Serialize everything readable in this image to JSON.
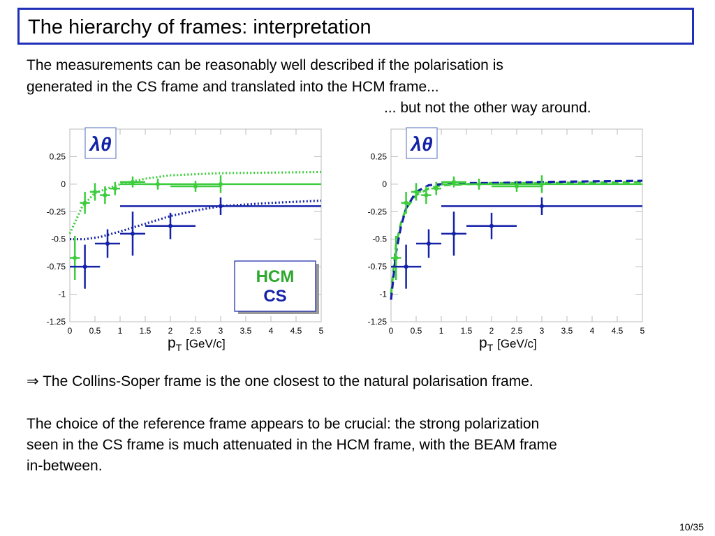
{
  "slide": {
    "title": "The hierarchy of  frames: interpretation",
    "intro_line1": "The measurements can be reasonably well described if the polarisation is",
    "intro_line2": "generated in the CS frame and translated into the HCM frame...",
    "intro_line3": "... but not the other way around.",
    "conclusion_arrow": "⇒",
    "conclusion": " The Collins-Soper frame is the one closest to the natural polarisation frame.",
    "choice_line1": "The choice of the reference frame appears to be crucial: the strong polarization",
    "choice_line2": "seen in the CS frame is much attenuated in the HCM frame, with the BEAM frame",
    "choice_line3": "in-between.",
    "page_number": "10/35"
  },
  "chart_data": [
    {
      "type": "scatter",
      "ylabel": "λθ",
      "xlabel_main": "p",
      "xlabel_sub": "T",
      "xlabel_unit": "[GeV/c]",
      "xlim": [
        0,
        5
      ],
      "ylim": [
        -1.25,
        0.5
      ],
      "x_ticks": [
        "0",
        "0.5",
        "1",
        "1.5",
        "2",
        "2.5",
        "3",
        "3.5",
        "4",
        "4.5",
        "5"
      ],
      "y_ticks": [
        "0.25",
        "0",
        "-0.25",
        "-0.5",
        "-0.75",
        "-1",
        "-1.25"
      ],
      "legend": [
        {
          "label": "HCM",
          "color": "#2ea82e"
        },
        {
          "label": "CS",
          "color": "#1422a8"
        }
      ],
      "series": [
        {
          "name": "HCM",
          "color": "#3dcc3d",
          "points": [
            {
              "x": 0.1,
              "y": -0.67,
              "xerr": 0.1,
              "yerr": 0.2
            },
            {
              "x": 0.3,
              "y": -0.17,
              "xerr": 0.1,
              "yerr": 0.1
            },
            {
              "x": 0.5,
              "y": -0.07,
              "xerr": 0.1,
              "yerr": 0.08
            },
            {
              "x": 0.7,
              "y": -0.1,
              "xerr": 0.1,
              "yerr": 0.08
            },
            {
              "x": 0.9,
              "y": -0.04,
              "xerr": 0.1,
              "yerr": 0.06
            },
            {
              "x": 1.25,
              "y": 0.02,
              "xerr": 0.25,
              "yerr": 0.05
            },
            {
              "x": 1.75,
              "y": 0.0,
              "xerr": 0.25,
              "yerr": 0.05
            },
            {
              "x": 2.5,
              "y": -0.02,
              "xerr": 0.5,
              "yerr": 0.05
            },
            {
              "x": 3.0,
              "y": 0.0,
              "xerr": 2.0,
              "yerr": 0.08
            }
          ]
        },
        {
          "name": "CS",
          "color": "#1422a8",
          "points": [
            {
              "x": 0.3,
              "y": -0.75,
              "xerr": 0.3,
              "yerr": 0.2
            },
            {
              "x": 0.75,
              "y": -0.54,
              "xerr": 0.25,
              "yerr": 0.13
            },
            {
              "x": 1.25,
              "y": -0.45,
              "xerr": 0.25,
              "yerr": 0.2
            },
            {
              "x": 2.0,
              "y": -0.38,
              "xerr": 0.5,
              "yerr": 0.12
            },
            {
              "x": 3.0,
              "y": -0.2,
              "xerr": 2.0,
              "yerr": 0.08
            }
          ]
        }
      ],
      "curves": [
        {
          "color": "#3dcc3d",
          "style": "dotted",
          "points": [
            [
              0,
              -0.45
            ],
            [
              0.25,
              -0.2
            ],
            [
              0.5,
              -0.08
            ],
            [
              1,
              0.0
            ],
            [
              1.5,
              0.05
            ],
            [
              2,
              0.08
            ],
            [
              3,
              0.1
            ],
            [
              5,
              0.11
            ]
          ]
        },
        {
          "color": "#1422a8",
          "style": "dotted",
          "points": [
            [
              0,
              -0.5
            ],
            [
              0.3,
              -0.5
            ],
            [
              0.6,
              -0.48
            ],
            [
              1,
              -0.43
            ],
            [
              1.5,
              -0.36
            ],
            [
              2,
              -0.29
            ],
            [
              2.5,
              -0.24
            ],
            [
              3,
              -0.2
            ],
            [
              4,
              -0.17
            ],
            [
              5,
              -0.15
            ]
          ]
        }
      ]
    },
    {
      "type": "scatter",
      "ylabel": "λθ",
      "xlabel_main": "p",
      "xlabel_sub": "T",
      "xlabel_unit": "[GeV/c]",
      "xlim": [
        0,
        5
      ],
      "ylim": [
        -1.25,
        0.5
      ],
      "x_ticks": [
        "0",
        "0.5",
        "1",
        "1.5",
        "2",
        "2.5",
        "3",
        "3.5",
        "4",
        "4.5",
        "5"
      ],
      "y_ticks": [
        "0.25",
        "0",
        "-0.25",
        "-0.5",
        "-0.75",
        "-1",
        "-1.25"
      ],
      "series": [
        {
          "name": "HCM",
          "color": "#3dcc3d",
          "points": [
            {
              "x": 0.1,
              "y": -0.67,
              "xerr": 0.1,
              "yerr": 0.2
            },
            {
              "x": 0.3,
              "y": -0.17,
              "xerr": 0.1,
              "yerr": 0.1
            },
            {
              "x": 0.5,
              "y": -0.07,
              "xerr": 0.1,
              "yerr": 0.08
            },
            {
              "x": 0.7,
              "y": -0.1,
              "xerr": 0.1,
              "yerr": 0.08
            },
            {
              "x": 0.9,
              "y": -0.04,
              "xerr": 0.1,
              "yerr": 0.06
            },
            {
              "x": 1.25,
              "y": 0.02,
              "xerr": 0.25,
              "yerr": 0.05
            },
            {
              "x": 1.75,
              "y": 0.0,
              "xerr": 0.25,
              "yerr": 0.05
            },
            {
              "x": 2.5,
              "y": -0.02,
              "xerr": 0.5,
              "yerr": 0.05
            },
            {
              "x": 3.0,
              "y": 0.0,
              "xerr": 2.0,
              "yerr": 0.08
            }
          ]
        },
        {
          "name": "CS",
          "color": "#1422a8",
          "points": [
            {
              "x": 0.3,
              "y": -0.75,
              "xerr": 0.3,
              "yerr": 0.2
            },
            {
              "x": 0.75,
              "y": -0.54,
              "xerr": 0.25,
              "yerr": 0.13
            },
            {
              "x": 1.25,
              "y": -0.45,
              "xerr": 0.25,
              "yerr": 0.2
            },
            {
              "x": 2.0,
              "y": -0.38,
              "xerr": 0.5,
              "yerr": 0.12
            },
            {
              "x": 3.0,
              "y": -0.2,
              "xerr": 2.0,
              "yerr": 0.08
            }
          ]
        }
      ],
      "curves": [
        {
          "color": "#3dcc3d",
          "style": "dashed",
          "points": [
            [
              0,
              -1.0
            ],
            [
              0.1,
              -0.55
            ],
            [
              0.2,
              -0.35
            ],
            [
              0.3,
              -0.22
            ],
            [
              0.5,
              -0.1
            ],
            [
              0.75,
              -0.04
            ],
            [
              1,
              -0.01
            ],
            [
              1.5,
              0.0
            ],
            [
              2,
              0.01
            ],
            [
              3,
              0.01
            ],
            [
              5,
              0.02
            ]
          ]
        },
        {
          "color": "#1422a8",
          "style": "dashed",
          "points": [
            [
              0,
              -1.05
            ],
            [
              0.1,
              -0.62
            ],
            [
              0.2,
              -0.38
            ],
            [
              0.3,
              -0.22
            ],
            [
              0.5,
              -0.07
            ],
            [
              0.75,
              -0.01
            ],
            [
              1,
              0.0
            ],
            [
              1.5,
              0.01
            ],
            [
              2,
              0.01
            ],
            [
              3,
              0.02
            ],
            [
              5,
              0.03
            ]
          ]
        }
      ]
    }
  ]
}
